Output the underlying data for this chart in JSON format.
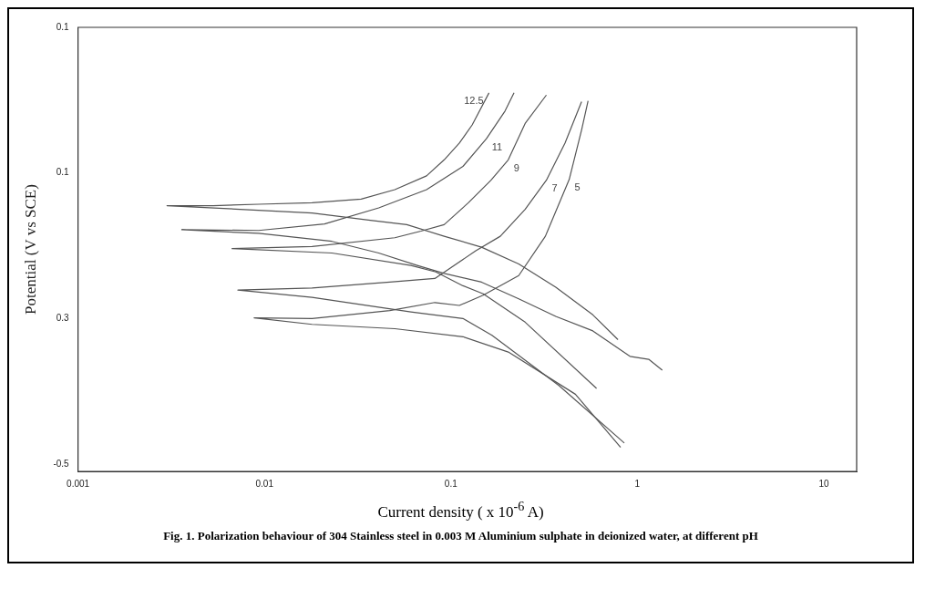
{
  "chart_data": {
    "type": "line",
    "xlabel": "Current density ( x 10$^{-6}$ A)",
    "ylabel": "Potential (V vs SCE)",
    "annotations": [
      "Fig. 1. Polarization behaviour of 304 Stainless steel in 0.003 M Aluminium sulphate in deionized water, at different pH"
    ],
    "log": "x",
    "xlim": [
      0.001,
      15
    ],
    "xticks": [
      0.001,
      0.01,
      0.1,
      1,
      10
    ],
    "ylim": [
      -0.51,
      0.1
    ],
    "yticks": [
      0.1,
      {
        "value": -0.1,
        "label": "0.1"
      },
      {
        "value": -0.3,
        "label": "0.3"
      },
      -0.5
    ],
    "marker": "none",
    "line_style": "solid",
    "legend": false,
    "grid": false,
    "series": [
      {
        "name": "12.5",
        "color": "#555555",
        "x": [
          0.16,
          0.13,
          0.111,
          0.092,
          0.074,
          0.05,
          0.033,
          0.018,
          0.0093,
          0.0053,
          0.003,
          0.0074,
          0.018,
          0.037,
          0.058,
          0.092,
          0.146,
          0.231,
          0.365,
          0.577,
          0.787
        ],
        "values": [
          0.01,
          -0.034,
          -0.059,
          -0.082,
          -0.104,
          -0.123,
          -0.136,
          -0.141,
          -0.143,
          -0.145,
          -0.145,
          -0.15,
          -0.155,
          -0.165,
          -0.171,
          -0.187,
          -0.202,
          -0.225,
          -0.257,
          -0.295,
          -0.329
        ]
      },
      {
        "name": "11",
        "color": "#555555",
        "x": [
          0.218,
          0.195,
          0.155,
          0.116,
          0.074,
          0.041,
          0.021,
          0.0093,
          0.0036,
          0.0093,
          0.023,
          0.041,
          0.066,
          0.092,
          0.146,
          0.231,
          0.365,
          0.577,
          0.912,
          1.15,
          1.36
        ],
        "values": [
          0.01,
          -0.015,
          -0.053,
          -0.091,
          -0.123,
          -0.148,
          -0.17,
          -0.179,
          -0.178,
          -0.183,
          -0.194,
          -0.21,
          -0.227,
          -0.238,
          -0.25,
          -0.273,
          -0.297,
          -0.317,
          -0.352,
          -0.356,
          -0.371
        ]
      },
      {
        "name": "9",
        "color": "#555555",
        "x": [
          0.325,
          0.25,
          0.203,
          0.164,
          0.124,
          0.092,
          0.069,
          0.05,
          0.018,
          0.0067,
          0.023,
          0.061,
          0.083,
          0.116,
          0.149,
          0.25,
          0.604
        ],
        "values": [
          0.007,
          -0.032,
          -0.082,
          -0.11,
          -0.141,
          -0.171,
          -0.18,
          -0.189,
          -0.201,
          -0.204,
          -0.21,
          -0.227,
          -0.236,
          -0.255,
          -0.266,
          -0.305,
          -0.396
        ]
      },
      {
        "name": "7",
        "color": "#555555",
        "x": [
          0.502,
          0.409,
          0.325,
          0.25,
          0.184,
          0.136,
          0.082,
          0.047,
          0.018,
          0.0072,
          0.018,
          0.061,
          0.116,
          0.166,
          0.379,
          0.851
        ],
        "values": [
          -0.002,
          -0.059,
          -0.11,
          -0.15,
          -0.187,
          -0.207,
          -0.245,
          -0.25,
          -0.258,
          -0.261,
          -0.271,
          -0.291,
          -0.3,
          -0.323,
          -0.392,
          -0.471
        ]
      },
      {
        "name": "5",
        "color": "#555555",
        "x": [
          0.544,
          0.502,
          0.431,
          0.321,
          0.231,
          0.149,
          0.111,
          0.082,
          0.047,
          0.018,
          0.0088,
          0.018,
          0.05,
          0.116,
          0.203,
          0.465,
          0.813
        ],
        "values": [
          -0.001,
          -0.041,
          -0.109,
          -0.187,
          -0.241,
          -0.268,
          -0.282,
          -0.278,
          -0.289,
          -0.3,
          -0.299,
          -0.308,
          -0.314,
          -0.325,
          -0.346,
          -0.404,
          -0.477
        ]
      }
    ]
  }
}
